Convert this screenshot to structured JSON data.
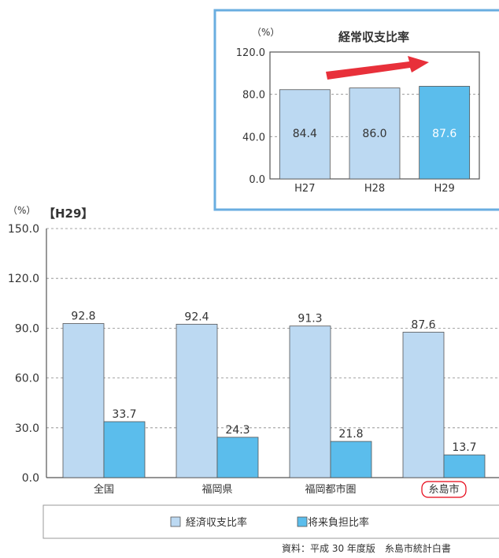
{
  "colors": {
    "light_bar": "#bcd9f2",
    "dark_bar": "#5bbdec",
    "bar_stroke": "#555555",
    "inset_border": "#6aaee0",
    "arrow": "#e8303a",
    "highlight": "#e60012",
    "grid": "#888888"
  },
  "chart_data": [
    {
      "type": "bar",
      "title": "経常収支比率",
      "unit": "（%）",
      "categories": [
        "H27",
        "H28",
        "H29"
      ],
      "values": [
        84.4,
        86.0,
        87.6
      ],
      "value_labels": [
        "84.4",
        "86.0",
        "87.6"
      ],
      "yticks": [
        "0.0",
        "40.0",
        "80.0",
        "120.0"
      ],
      "ylim": [
        0,
        120
      ],
      "grid": true,
      "annotation": "upward-trend-arrow",
      "highlight_category": "H29"
    },
    {
      "type": "bar",
      "title": "【H29】",
      "unit": "（%）",
      "categories": [
        "全国",
        "福岡県",
        "福岡都市圏",
        "糸島市"
      ],
      "series": [
        {
          "name": "経済収支比率",
          "values": [
            92.8,
            92.4,
            91.3,
            87.6
          ],
          "labels": [
            "92.8",
            "92.4",
            "91.3",
            "87.6"
          ]
        },
        {
          "name": "将来負担比率",
          "values": [
            33.7,
            24.3,
            21.8,
            13.7
          ],
          "labels": [
            "33.7",
            "24.3",
            "21.8",
            "13.7"
          ]
        }
      ],
      "yticks": [
        "0.0",
        "30.0",
        "60.0",
        "90.0",
        "120.0",
        "150.0"
      ],
      "ylim": [
        0,
        150
      ],
      "grid": true,
      "legend_position": "bottom",
      "highlight_category": "糸島市"
    }
  ],
  "source": "資料：平成 30 年度版　糸島市統計白書"
}
